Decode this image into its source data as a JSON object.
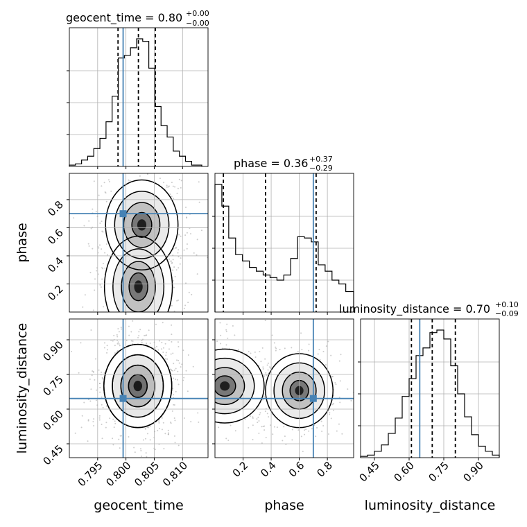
{
  "chart_data": {
    "type": "corner",
    "parameters": [
      {
        "name": "geocent_time",
        "xlabel": "geocent_time",
        "ylabel": "",
        "range": [
          0.79,
          0.8145
        ],
        "ticks": [
          0.795,
          0.8,
          0.805,
          0.81
        ],
        "tick_labels": [
          "0.795",
          "0.800",
          "0.805",
          "0.810"
        ],
        "truth": 0.7995,
        "quantiles": [
          0.7986,
          0.8022,
          0.8052
        ],
        "summary": {
          "label": "geocent_time = ",
          "value": "0.80",
          "plus": "+0.00",
          "minus": "−0.00"
        }
      },
      {
        "name": "phase",
        "xlabel": "phase",
        "ylabel": "phase",
        "range": [
          0.0,
          0.987
        ],
        "ticks": [
          0.2,
          0.4,
          0.6,
          0.8
        ],
        "tick_labels": [
          "0.2",
          "0.4",
          "0.6",
          "0.8"
        ],
        "truth": 0.7,
        "quantiles": [
          0.06,
          0.36,
          0.72
        ],
        "summary": {
          "label": "phase = ",
          "value": "0.36",
          "plus": "+0.37",
          "minus": "−0.29"
        }
      },
      {
        "name": "luminosity_distance",
        "xlabel": "luminosity_distance",
        "ylabel": "luminosity_distance",
        "range": [
          0.39,
          0.99
        ],
        "ticks": [
          0.45,
          0.6,
          0.75,
          0.9
        ],
        "tick_labels": [
          "0.45",
          "0.60",
          "0.75",
          "0.90"
        ],
        "truth": 0.646,
        "quantiles": [
          0.61,
          0.7,
          0.8
        ],
        "summary": {
          "label": "luminosity_distance = ",
          "value": "0.70",
          "plus": "+0.10",
          "minus": "−0.09"
        }
      }
    ],
    "histograms": [
      {
        "param": "geocent_time",
        "bin_edges": [
          0.79,
          0.79108,
          0.79216,
          0.79324,
          0.79432,
          0.7954,
          0.79648,
          0.79756,
          0.79864,
          0.79972,
          0.8008,
          0.80188,
          0.80296,
          0.80404,
          0.80512,
          0.8062,
          0.80728,
          0.80836,
          0.80944,
          0.81052,
          0.8116,
          0.8134
        ],
        "counts": [
          0.01,
          0.02,
          0.05,
          0.08,
          0.14,
          0.22,
          0.35,
          0.55,
          0.85,
          0.87,
          0.93,
          1.0,
          0.98,
          0.77,
          0.47,
          0.32,
          0.23,
          0.12,
          0.08,
          0.04,
          0.01
        ]
      },
      {
        "param": "phase",
        "bin_edges": [
          0.0,
          0.049,
          0.098,
          0.147,
          0.196,
          0.245,
          0.294,
          0.343,
          0.392,
          0.441,
          0.49,
          0.539,
          0.588,
          0.637,
          0.686,
          0.735,
          0.784,
          0.833,
          0.882,
          0.931,
          0.987
        ],
        "counts": [
          1.0,
          0.83,
          0.58,
          0.45,
          0.4,
          0.35,
          0.32,
          0.29,
          0.27,
          0.25,
          0.29,
          0.42,
          0.59,
          0.58,
          0.55,
          0.37,
          0.32,
          0.25,
          0.22,
          0.16
        ]
      },
      {
        "param": "luminosity_distance",
        "bin_edges": [
          0.39,
          0.42,
          0.45,
          0.48,
          0.51,
          0.54,
          0.57,
          0.6,
          0.63,
          0.66,
          0.69,
          0.72,
          0.75,
          0.78,
          0.81,
          0.84,
          0.87,
          0.9,
          0.93,
          0.96,
          0.99
        ],
        "counts": [
          0.01,
          0.02,
          0.05,
          0.1,
          0.19,
          0.31,
          0.48,
          0.62,
          0.8,
          0.86,
          0.98,
          1.0,
          0.93,
          0.72,
          0.5,
          0.32,
          0.18,
          0.09,
          0.05,
          0.02
        ]
      }
    ],
    "density_panels": [
      {
        "x": "geocent_time",
        "y": "phase",
        "cx": 0.8022,
        "cy": 0.18,
        "sx": 0.003,
        "sy": 0.18,
        "cx2": 0.8028,
        "cy2": 0.62,
        "sx2": 0.0032,
        "sy2": 0.16
      },
      {
        "x": "geocent_time",
        "y": "luminosity_distance",
        "cx": 0.8021,
        "cy": 0.7,
        "sx": 0.003,
        "sy": 0.09,
        "cx2": 0.8021,
        "cy2": 0.7,
        "sx2": 0.003,
        "sy2": 0.09
      },
      {
        "x": "phase",
        "y": "luminosity_distance",
        "cx": 0.07,
        "cy": 0.7,
        "sx": 0.14,
        "sy": 0.08,
        "cx2": 0.6,
        "cy2": 0.68,
        "sx2": 0.12,
        "sy2": 0.08
      }
    ],
    "grid": true,
    "truth_color": "#4682b4",
    "hist_color": "#000000",
    "scatter_color": "#9a9a9a"
  }
}
